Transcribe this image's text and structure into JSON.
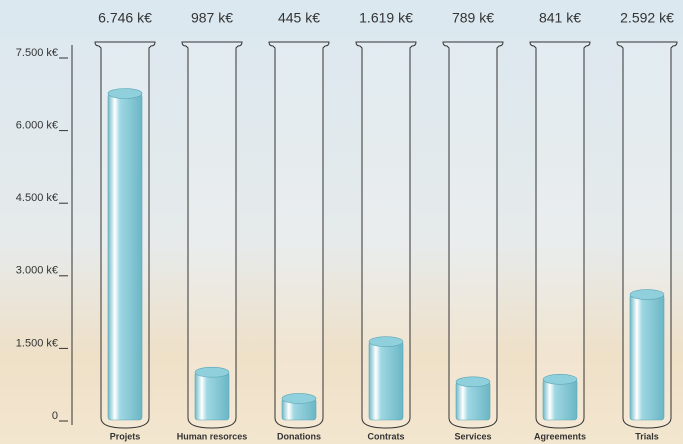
{
  "chart_data": {
    "type": "bar",
    "categories": [
      "Projets",
      "Human resorces",
      "Donations",
      "Contrats",
      "Services",
      "Agreements",
      "Trials"
    ],
    "values": [
      6746,
      987,
      445,
      1619,
      789,
      841,
      2592
    ],
    "value_labels": [
      "6.746 k€",
      "987 k€",
      "445 k€",
      "1.619 k€",
      "789 k€",
      "841 k€",
      "2.592 k€"
    ],
    "color": "#8fd0dc",
    "ylim": [
      0,
      7500
    ],
    "yticks": [
      0,
      {
        "value": 1500,
        "label": "1.500 k€"
      },
      {
        "value": 3000,
        "label": "3.000 k€"
      },
      {
        "value": 4500,
        "label": "4.500 k€"
      },
      {
        "value": 6000,
        "label": "6.000 k€"
      },
      {
        "value": 7500,
        "label": "7.500 k€"
      }
    ]
  }
}
